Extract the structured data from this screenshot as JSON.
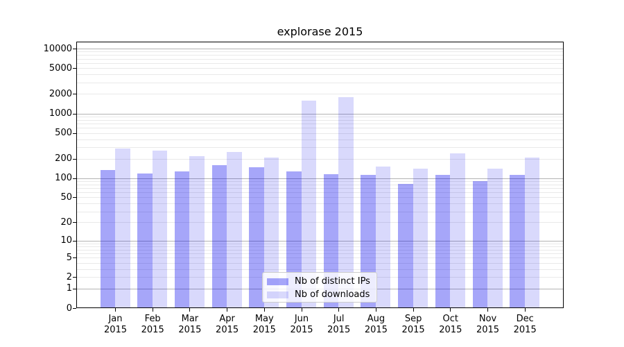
{
  "title": "explorase 2015",
  "chart_data": {
    "type": "bar",
    "title": "explorase 2015",
    "categories": [
      "Jan 2015",
      "Feb 2015",
      "Mar 2015",
      "Apr 2015",
      "May 2015",
      "Jun 2015",
      "Jul 2015",
      "Aug 2015",
      "Sep 2015",
      "Oct 2015",
      "Nov 2015",
      "Dec 2015"
    ],
    "series": [
      {
        "name": "Nb of distinct IPs",
        "color": "rgba(0,0,238,0.35)",
        "values": [
          132,
          118,
          127,
          160,
          146,
          128,
          115,
          113,
          82,
          111,
          90,
          112
        ]
      },
      {
        "name": "Nb of downloads",
        "color": "rgba(0,0,238,0.15)",
        "values": [
          288,
          270,
          220,
          257,
          211,
          1580,
          1780,
          152,
          141,
          242,
          140,
          210
        ]
      }
    ],
    "xlabel": "",
    "ylabel": "",
    "yscale": "log1p",
    "y_ticks": [
      10000,
      5000,
      2000,
      1000,
      500,
      200,
      100,
      50,
      20,
      10,
      5,
      2,
      1,
      0
    ],
    "ylim": [
      0,
      12800
    ],
    "grid": {
      "major_color": "#b3b3b3",
      "minor_color": "#e9e9e9",
      "major_at": [
        1,
        10,
        100,
        1000,
        10000
      ],
      "minor": "2-9 per decade"
    },
    "legend_position": "lower center"
  },
  "colors": {
    "background": "#ffffff",
    "spine": "#000000",
    "legend_border": "#cccccc",
    "legend_background": "rgba(255,255,255,0.8)"
  }
}
